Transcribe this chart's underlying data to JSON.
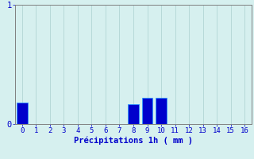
{
  "categories": [
    0,
    1,
    2,
    3,
    4,
    5,
    6,
    7,
    8,
    9,
    10,
    11,
    12,
    13,
    14,
    15,
    16
  ],
  "values": [
    0.18,
    0.0,
    0.0,
    0.0,
    0.0,
    0.0,
    0.0,
    0.0,
    0.17,
    0.22,
    0.22,
    0.0,
    0.0,
    0.0,
    0.0,
    0.0,
    0.0
  ],
  "bar_color": "#0000cc",
  "bar_edge_color": "#3399ff",
  "background_color": "#d6f0ef",
  "grid_color": "#aacfcf",
  "axis_color": "#808080",
  "text_color": "#0000cc",
  "xlabel": "Précipitations 1h ( mm )",
  "ylim": [
    0,
    1.0
  ],
  "xlim": [
    -0.5,
    16.5
  ],
  "yticks": [
    0,
    1
  ],
  "xticks": [
    0,
    1,
    2,
    3,
    4,
    5,
    6,
    7,
    8,
    9,
    10,
    11,
    12,
    13,
    14,
    15,
    16
  ],
  "bar_width": 0.75,
  "xlabel_fontsize": 7.5,
  "tick_fontsize": 6.5
}
